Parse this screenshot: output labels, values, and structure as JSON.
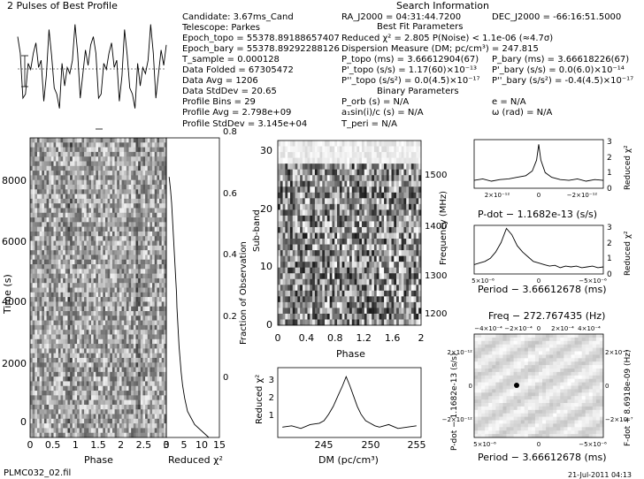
{
  "footer": {
    "filename": "PLMC032_02.fil",
    "date": "21-Jul-2011 04:13"
  },
  "info": {
    "search_title": "Search Information",
    "best_fit_title": "Best Fit Parameters",
    "binary_title": "Binary Parameters",
    "rows_left": [
      "Candidate:  3.67ms_Cand",
      "Telescope:  Parkes",
      "Epoch_topo = 55378.89188657407",
      "Epoch_bary = 55378.89292288126",
      "T_sample   = 0.000128",
      "Data Folded  = 67305472",
      "Data Avg     = 1206",
      "Data StdDev  = 20.65",
      "Profile Bins  = 29",
      "Profile Avg   = 2.798e+09",
      "Profile StdDev = 3.145e+04"
    ],
    "ra": "RA_J2000 = 04:31:44.7200",
    "dec": "DEC_J2000 = -66:16:51.5000",
    "reduced_chi2": "Reduced χ² = 2.805   P(Noise) < 1.1e-06   (≈4.7σ)",
    "dispersion": "Dispersion Measure (DM; pc/cm³) = 247.815",
    "p_topo": "P_topo (ms) = 3.66612904(67)",
    "pdot_topo": "P'_topo (s/s) = 1.17(60)×10⁻¹³",
    "pddot_topo": "P''_topo (s/s²) = 0.0(4.5)×10⁻¹⁷",
    "p_bary": "P_bary (ms) = 3.66618226(67)",
    "pdot_bary": "P'_bary (s/s) = 0.0(6.0)×10⁻¹⁴",
    "pddot_bary": "P''_bary (s/s²) = -0.4(4.5)×10⁻¹⁷",
    "p_orb": "P_orb (s) = N/A",
    "e": "e = N/A",
    "a_sin": "a₁sin(i)/c (s) = N/A",
    "omega": "ω (rad) = N/A",
    "t_peri": "T_peri = N/A"
  },
  "chart_data": [
    {
      "type": "line",
      "title": "2 Pulses of Best Profile",
      "x": [
        0,
        1,
        2,
        3,
        4,
        5,
        6,
        7,
        8,
        9,
        10,
        11,
        12,
        13,
        14,
        15,
        16,
        17,
        18,
        19,
        20,
        21,
        22,
        23,
        24,
        25,
        26,
        27,
        28,
        29,
        30,
        31,
        32,
        33,
        34,
        35,
        36,
        37,
        38,
        39,
        40,
        41,
        42,
        43,
        44,
        45,
        46,
        47,
        48,
        49,
        50,
        51,
        52,
        53,
        54,
        55,
        56,
        57
      ],
      "values": [
        0.78,
        0.62,
        0.18,
        0.22,
        0.52,
        0.46,
        0.62,
        0.72,
        0.48,
        0.55,
        0.15,
        0.4,
        0.85,
        0.6,
        0.28,
        0.22,
        0.08,
        0.52,
        0.3,
        0.48,
        0.42,
        0.55,
        0.9,
        0.62,
        0.18,
        0.42,
        0.65,
        0.5,
        0.7,
        0.78,
        0.62,
        0.18,
        0.22,
        0.52,
        0.46,
        0.62,
        0.72,
        0.48,
        0.55,
        0.15,
        0.4,
        0.85,
        0.6,
        0.28,
        0.22,
        0.08,
        0.52,
        0.3,
        0.48,
        0.42,
        0.55,
        0.9,
        0.62,
        0.18,
        0.42,
        0.65,
        0.5,
        0.7
      ]
    },
    {
      "type": "heatmap",
      "name": "time-phase",
      "xlabel": "Phase",
      "ylabel": "Time (s)",
      "x_ticks": [
        "0",
        "0.5",
        "1",
        "1.5",
        "2",
        "2.5",
        "3"
      ],
      "y_ticks": [
        "0",
        "2000",
        "4000",
        "6000",
        "8000"
      ]
    },
    {
      "type": "line",
      "name": "reduced-chi2-vs-time",
      "xlabel": "Reduced χ²",
      "ylabel": "Fraction of Observation",
      "x_ticks": [
        "0",
        "5",
        "10",
        "15"
      ],
      "y_ticks": [
        "0",
        "0.2",
        "0.4",
        "0.6",
        "0.8"
      ],
      "fraction": [
        0,
        0.05,
        0.1,
        0.15,
        0.2,
        0.25,
        0.3,
        0.35,
        0.4,
        0.45,
        0.5,
        0.55,
        0.6,
        0.65,
        0.7,
        0.75,
        0.8,
        0.85,
        0.9,
        0.95,
        1.0
      ],
      "chi2": [
        12,
        8,
        6,
        5.2,
        4.6,
        4.2,
        3.9,
        3.6,
        3.4,
        3.2,
        3.0,
        2.9,
        2.7,
        2.5,
        2.3,
        2.1,
        1.9,
        1.7,
        1.5,
        1.2,
        0.8
      ]
    },
    {
      "type": "heatmap",
      "name": "subband-phase",
      "xlabel": "Phase",
      "ylabel": "Sub-band",
      "ylabel_right": "Frequency (MHz)",
      "x_ticks": [
        "0",
        "0.4",
        "0.8",
        "1.2",
        "1.6",
        "2"
      ],
      "y_ticks": [
        "0",
        "10",
        "20",
        "30"
      ],
      "y_ticks_right": [
        "1200",
        "1300",
        "1400",
        "1500"
      ]
    },
    {
      "type": "line",
      "name": "dm-curve",
      "xlabel": "DM (pc/cm³)",
      "ylabel": "Reduced χ²",
      "x_ticks": [
        "245",
        "250",
        "255"
      ],
      "y_ticks": [
        "1",
        "2",
        "3"
      ],
      "x": [
        240.5,
        241.5,
        242.5,
        243.5,
        244.5,
        245.0,
        245.5,
        246.0,
        246.5,
        247.0,
        247.4,
        247.8,
        248.2,
        248.6,
        249.0,
        249.5,
        250.0,
        250.5,
        251.0,
        252.0,
        253.0,
        254.0,
        255.0
      ],
      "y": [
        0.8,
        0.85,
        0.75,
        0.9,
        0.95,
        1.05,
        1.3,
        1.6,
        2.0,
        2.4,
        2.75,
        2.4,
        2.0,
        1.6,
        1.3,
        1.05,
        0.95,
        0.85,
        0.8,
        0.9,
        0.75,
        0.8,
        0.85
      ]
    },
    {
      "type": "line",
      "name": "pdot-curve",
      "xlabel": "P-dot − 1.1682e-13 (s/s)",
      "ylabel": "Reduced χ²",
      "x_ticks": [
        "2×10⁻¹²",
        "0",
        "−2×10⁻¹²"
      ],
      "y_ticks": [
        "0",
        "1",
        "2",
        "3"
      ],
      "x": [
        -3,
        -2.6,
        -2.2,
        -1.8,
        -1.4,
        -1.0,
        -0.6,
        -0.3,
        -0.1,
        0,
        0.1,
        0.3,
        0.6,
        1.0,
        1.4,
        1.8,
        2.2,
        2.6,
        3.0
      ],
      "y": [
        0.5,
        0.6,
        0.45,
        0.55,
        0.6,
        0.7,
        0.8,
        1.1,
        1.8,
        2.8,
        1.8,
        1.0,
        0.7,
        0.55,
        0.5,
        0.6,
        0.45,
        0.55,
        0.5
      ]
    },
    {
      "type": "line",
      "name": "period-curve",
      "xlabel": "Period − 3.66612678 (ms)",
      "ylabel": "Reduced χ²",
      "x_ticks": [
        "5×10⁻⁶",
        "0",
        "−5×10⁻⁶"
      ],
      "y_ticks": [
        "0",
        "1",
        "2",
        "3"
      ],
      "x": [
        -6,
        -5.5,
        -5,
        -4.5,
        -4,
        -3.5,
        -3,
        -2.5,
        -2,
        -1.5,
        -1,
        -0.5,
        0,
        0.5,
        1,
        1.5,
        2,
        2.5,
        3,
        3.5,
        4,
        4.5,
        5,
        5.5,
        6
      ],
      "y": [
        0.6,
        0.7,
        0.8,
        1.0,
        1.4,
        2.0,
        2.9,
        2.5,
        1.8,
        1.4,
        1.1,
        0.8,
        0.7,
        0.6,
        0.5,
        0.55,
        0.4,
        0.5,
        0.45,
        0.5,
        0.4,
        0.45,
        0.5,
        0.4,
        0.45
      ]
    },
    {
      "type": "heatmap",
      "name": "p-pdot-plane",
      "title": "Freq − 272.767435 (Hz)",
      "xlabel": "Period − 3.66612678 (ms)",
      "ylabel": "P-dot − 1.1682e-13 (s/s)",
      "ylabel_right": "F-dot + 8.6918e-09 (Hz)",
      "x_ticks_top": [
        "−4×10⁻⁴",
        "−2×10⁻⁴",
        "0",
        "2×10⁻⁴",
        "4×10⁻⁴"
      ],
      "x_ticks_bottom": [
        "5×10⁻⁶",
        "0",
        "−5×10⁻⁶"
      ],
      "y_ticks": [
        "−2×10⁻¹²",
        "0",
        "2×10⁻¹²"
      ],
      "y_ticks_right": [
        "−2×10⁻⁷",
        "0",
        "2×10⁻⁷"
      ]
    }
  ]
}
